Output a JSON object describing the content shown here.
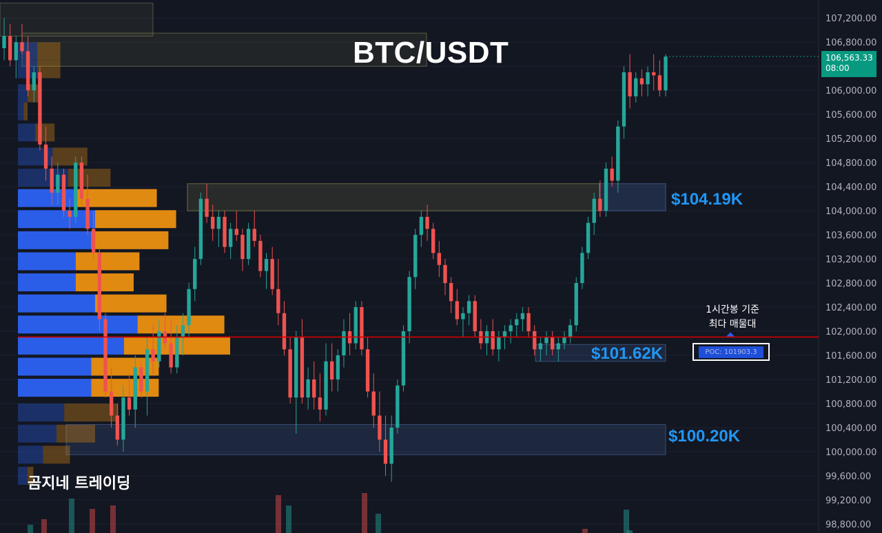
{
  "title": "BTC/USDT",
  "watermark": "곰지네 트레이딩",
  "colors": {
    "background": "#131722",
    "up": "#26a69a",
    "down": "#ef5350",
    "poc_line": "#d50000",
    "profile_up": "#2b5ee8",
    "profile_down": "#e08a12",
    "zone_label": "#2196f3",
    "price_tag": "#089981"
  },
  "current_price": {
    "value": "106,563.33",
    "time": "08:00"
  },
  "annotation": {
    "line1": "1시간봉 기준",
    "line2": "최다 매물대"
  },
  "poc": {
    "label": "POC: 101903.3",
    "value": 101903.3
  },
  "zones": [
    {
      "name": "zone-104k",
      "label": "$104.19K",
      "low": 104000,
      "high": 104450
    },
    {
      "name": "zone-101k",
      "label": "$101.62K",
      "low": 101500,
      "high": 101780
    },
    {
      "name": "zone-100k",
      "label": "$100.20K",
      "low": 99950,
      "high": 100450
    }
  ],
  "chart_data": {
    "type": "candlestick",
    "title": "BTC/USDT",
    "y_axis": {
      "ylim": [
        98650,
        107500
      ],
      "ticks": [
        107200,
        106800,
        106400,
        106000,
        105600,
        105200,
        104800,
        104400,
        104000,
        103600,
        103200,
        102800,
        102400,
        102000,
        101600,
        101200,
        100800,
        100400,
        100000,
        99600,
        99200,
        98800
      ],
      "tick_labels": [
        "107,200.00",
        "106,800.00",
        "106,400.00",
        "106,000.00",
        "105,600.00",
        "105,200.00",
        "104,800.00",
        "104,400.00",
        "104,000.00",
        "103,600.00",
        "103,200.00",
        "102,800.00",
        "102,400.00",
        "102,000.00",
        "101,600.00",
        "101,200.00",
        "100,800.00",
        "100,400.00",
        "100,000.00",
        "99,600.00",
        "99,200.00",
        "98,800.00"
      ]
    },
    "candles": [
      [
        106700,
        107200,
        106500,
        106900
      ],
      [
        106900,
        107100,
        106400,
        106500
      ],
      [
        106500,
        106900,
        106200,
        106800
      ],
      [
        106800,
        107100,
        106600,
        106650
      ],
      [
        106650,
        106900,
        105900,
        106000
      ],
      [
        106000,
        106400,
        105800,
        106300
      ],
      [
        106300,
        106400,
        105000,
        105100
      ],
      [
        105100,
        105400,
        104500,
        104700
      ],
      [
        104700,
        104900,
        104100,
        104300
      ],
      [
        104300,
        104800,
        104100,
        104600
      ],
      [
        104600,
        104700,
        103900,
        104000
      ],
      [
        104000,
        104200,
        103700,
        103900
      ],
      [
        103900,
        104900,
        103800,
        104800
      ],
      [
        104800,
        104900,
        104100,
        104200
      ],
      [
        104200,
        104600,
        103600,
        103700
      ],
      [
        103700,
        104000,
        103200,
        103300
      ],
      [
        103300,
        103400,
        102000,
        102200
      ],
      [
        102200,
        102300,
        100900,
        101000
      ],
      [
        101000,
        101400,
        100400,
        100600
      ],
      [
        100600,
        100800,
        100100,
        100200
      ],
      [
        100200,
        101100,
        100000,
        100900
      ],
      [
        100900,
        101300,
        100600,
        100700
      ],
      [
        100700,
        101600,
        100400,
        101400
      ],
      [
        101400,
        101500,
        100900,
        101000
      ],
      [
        101000,
        101900,
        100600,
        101700
      ],
      [
        101700,
        102100,
        101300,
        101500
      ],
      [
        101500,
        102200,
        101400,
        102000
      ],
      [
        102000,
        102300,
        101700,
        101800
      ],
      [
        101800,
        102200,
        101300,
        101400
      ],
      [
        101400,
        102100,
        101300,
        101900
      ],
      [
        101900,
        102300,
        101600,
        102100
      ],
      [
        102100,
        102800,
        101900,
        102700
      ],
      [
        102700,
        103400,
        102500,
        103200
      ],
      [
        103200,
        104300,
        103100,
        104200
      ],
      [
        104200,
        104450,
        103800,
        103900
      ],
      [
        103900,
        104100,
        103500,
        103700
      ],
      [
        103700,
        104000,
        103400,
        103900
      ],
      [
        103900,
        104000,
        103300,
        103400
      ],
      [
        103400,
        103800,
        103200,
        103700
      ],
      [
        103700,
        104000,
        103500,
        103600
      ],
      [
        103600,
        103700,
        103000,
        103200
      ],
      [
        103200,
        103800,
        103100,
        103700
      ],
      [
        103700,
        104000,
        103400,
        103500
      ],
      [
        103500,
        103600,
        102900,
        103000
      ],
      [
        103000,
        103300,
        102700,
        103200
      ],
      [
        103200,
        103400,
        102600,
        102700
      ],
      [
        102700,
        103200,
        102100,
        102300
      ],
      [
        102300,
        102500,
        101600,
        101700
      ],
      [
        101700,
        101900,
        100800,
        100900
      ],
      [
        100900,
        102000,
        100300,
        101900
      ],
      [
        101900,
        102200,
        100800,
        100900
      ],
      [
        100900,
        101400,
        100700,
        101200
      ],
      [
        101200,
        101500,
        100700,
        100900
      ],
      [
        100900,
        101300,
        100500,
        100700
      ],
      [
        100700,
        101800,
        100600,
        101500
      ],
      [
        101500,
        101800,
        101000,
        101200
      ],
      [
        101200,
        101700,
        101000,
        101600
      ],
      [
        101600,
        102200,
        101400,
        102000
      ],
      [
        102000,
        102300,
        101600,
        101800
      ],
      [
        101800,
        102500,
        101700,
        102400
      ],
      [
        102400,
        102500,
        101600,
        101700
      ],
      [
        101700,
        101900,
        100900,
        101000
      ],
      [
        101000,
        101300,
        100400,
        100600
      ],
      [
        100600,
        101000,
        100000,
        100200
      ],
      [
        100200,
        100600,
        99600,
        99800
      ],
      [
        99800,
        100600,
        99500,
        100400
      ],
      [
        100400,
        101200,
        100300,
        101100
      ],
      [
        101100,
        102100,
        101000,
        102000
      ],
      [
        102000,
        103000,
        101800,
        102900
      ],
      [
        102900,
        103700,
        102700,
        103600
      ],
      [
        103600,
        104000,
        103400,
        103900
      ],
      [
        103900,
        104100,
        103500,
        103700
      ],
      [
        103700,
        103800,
        103200,
        103300
      ],
      [
        103300,
        103500,
        102900,
        103100
      ],
      [
        103100,
        103200,
        102600,
        102800
      ],
      [
        102800,
        102900,
        102300,
        102500
      ],
      [
        102500,
        102700,
        102100,
        102200
      ],
      [
        102200,
        102400,
        101900,
        102300
      ],
      [
        102300,
        102600,
        102100,
        102500
      ],
      [
        102500,
        102600,
        101900,
        102000
      ],
      [
        102000,
        102200,
        101700,
        101800
      ],
      [
        101800,
        102100,
        101600,
        102000
      ],
      [
        102000,
        102200,
        101600,
        101700
      ],
      [
        101700,
        102000,
        101500,
        101900
      ],
      [
        101900,
        102100,
        101700,
        102000
      ],
      [
        102000,
        102200,
        101800,
        102100
      ],
      [
        102100,
        102300,
        101900,
        102200
      ],
      [
        102200,
        102400,
        102000,
        102300
      ],
      [
        102300,
        102400,
        101900,
        102000
      ],
      [
        102000,
        102100,
        101600,
        101700
      ],
      [
        101700,
        101900,
        101500,
        101800
      ],
      [
        101800,
        102000,
        101600,
        101900
      ],
      [
        101900,
        102000,
        101600,
        101700
      ],
      [
        101700,
        101900,
        101500,
        101800
      ],
      [
        101800,
        102000,
        101700,
        101900
      ],
      [
        101900,
        102200,
        101800,
        102100
      ],
      [
        102100,
        102900,
        102000,
        102800
      ],
      [
        102800,
        103400,
        102700,
        103300
      ],
      [
        103300,
        103900,
        103200,
        103800
      ],
      [
        103800,
        104300,
        103600,
        104200
      ],
      [
        104200,
        104500,
        103900,
        104000
      ],
      [
        104000,
        104800,
        103900,
        104700
      ],
      [
        104700,
        104900,
        104400,
        104500
      ],
      [
        104500,
        105500,
        104300,
        105400
      ],
      [
        105400,
        106400,
        105200,
        106300
      ],
      [
        106300,
        106600,
        105700,
        105900
      ],
      [
        105900,
        106300,
        105800,
        106200
      ],
      [
        106200,
        106350,
        105900,
        106100
      ],
      [
        106100,
        106400,
        105900,
        106300
      ],
      [
        106300,
        106600,
        106000,
        106250
      ],
      [
        106250,
        106500,
        105900,
        106000
      ],
      [
        106000,
        106600,
        105900,
        106560
      ]
    ],
    "volume_profile": [
      {
        "price": 104200,
        "up": 0.3,
        "down": 0.42
      },
      {
        "price": 103850,
        "up": 0.4,
        "down": 0.42
      },
      {
        "price": 103500,
        "up": 0.38,
        "down": 0.4
      },
      {
        "price": 103150,
        "up": 0.3,
        "down": 0.33
      },
      {
        "price": 102800,
        "up": 0.3,
        "down": 0.3
      },
      {
        "price": 102450,
        "up": 0.4,
        "down": 0.37
      },
      {
        "price": 102100,
        "up": 0.62,
        "down": 0.45
      },
      {
        "price": 101750,
        "up": 0.55,
        "down": 0.55
      },
      {
        "price": 101400,
        "up": 0.38,
        "down": 0.35
      },
      {
        "price": 101050,
        "up": 0.38,
        "down": 0.35
      }
    ]
  }
}
